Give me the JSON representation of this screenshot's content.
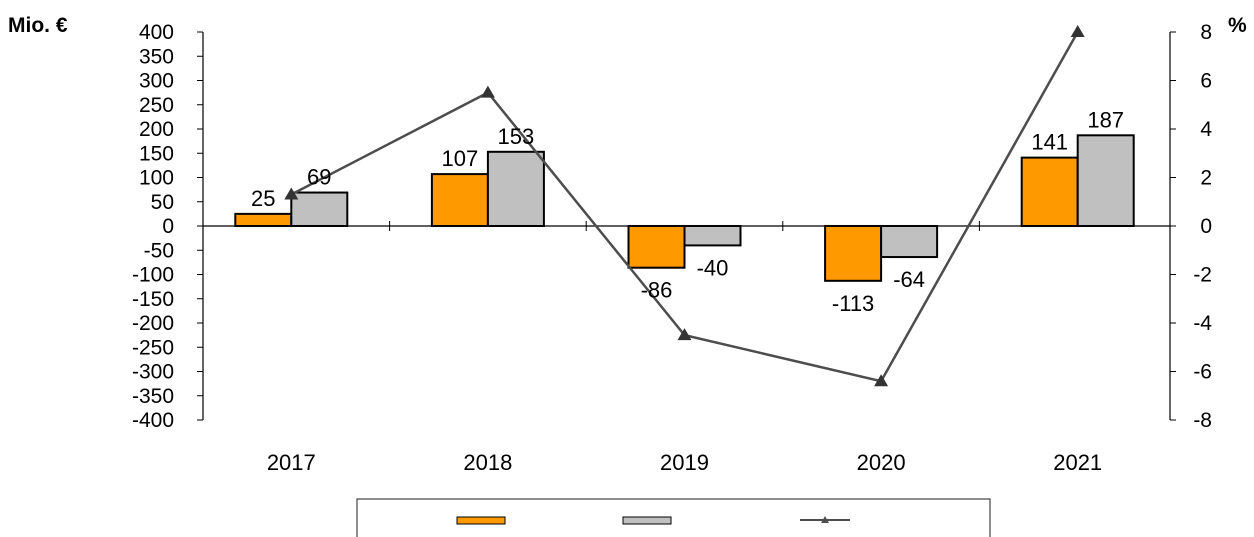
{
  "chart_data": {
    "type": "bar",
    "left_axis": {
      "unit_label": "Mio. €",
      "ticks": [
        "400",
        "350",
        "300",
        "250",
        "200",
        "150",
        "100",
        "50",
        "0",
        "-50",
        "-100",
        "-150",
        "-200",
        "-250",
        "-300",
        "-350",
        "-400"
      ],
      "ylim": [
        -400,
        400
      ]
    },
    "right_axis": {
      "unit_label": "%",
      "ticks": [
        "8",
        "6",
        "4",
        "2",
        "0",
        "-2",
        "-4",
        "-6",
        "-8"
      ],
      "ylim": [
        -8,
        8
      ]
    },
    "categories": [
      "2017",
      "2018",
      "2019",
      "2020",
      "2021"
    ],
    "series": [
      {
        "type": "bar",
        "legend": "",
        "color": "#FF9900",
        "values": [
          25,
          107,
          -86,
          -113,
          141
        ],
        "labels": [
          "25",
          "107",
          "-86",
          "-113",
          "141"
        ]
      },
      {
        "type": "bar",
        "legend": "",
        "color": "#C0C0C0",
        "values": [
          69,
          153,
          -40,
          -64,
          187
        ],
        "labels": [
          "69",
          "153",
          "-40",
          "-64",
          "187"
        ]
      },
      {
        "type": "line",
        "axis": "right",
        "legend": "",
        "color": "#4D4D4D",
        "marker": "triangle",
        "values": [
          1.3,
          5.5,
          -4.5,
          -6.4,
          8.0
        ]
      }
    ],
    "legend_position": "bottom",
    "grid": false
  }
}
